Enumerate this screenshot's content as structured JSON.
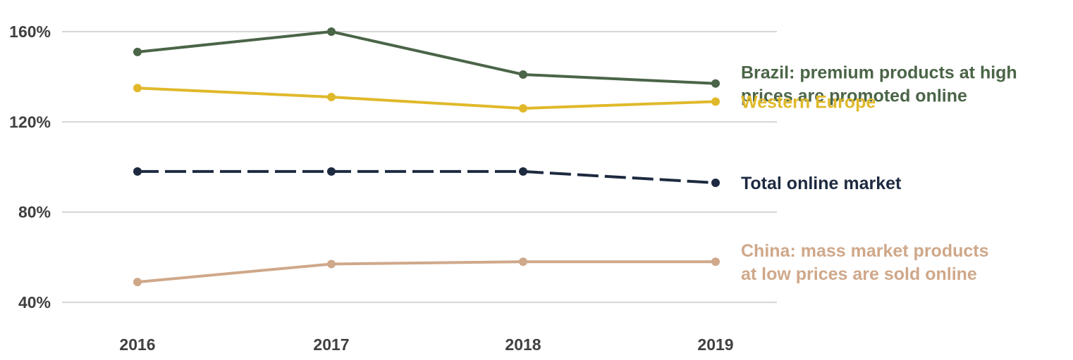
{
  "chart_data": {
    "type": "line",
    "title": "",
    "xlabel": "",
    "ylabel": "",
    "x": [
      "2016",
      "2017",
      "2018",
      "2019"
    ],
    "ylim": [
      40,
      160
    ],
    "yticks": [
      40,
      80,
      120,
      160
    ],
    "ytick_labels": [
      "40%",
      "80%",
      "120%",
      "160%"
    ],
    "grid": "horizontal",
    "legend": "inline-right",
    "series": [
      {
        "key": "brazil",
        "label_lines": [
          "Brazil: premium products at high",
          "prices are promoted online"
        ],
        "values": [
          151,
          160,
          141,
          137
        ],
        "color": "#4a6547",
        "dashed": false
      },
      {
        "key": "western_europe",
        "label_lines": [
          "Western Europe"
        ],
        "values": [
          135,
          131,
          126,
          129
        ],
        "color": "#e0b92b",
        "dashed": false
      },
      {
        "key": "total",
        "label_lines": [
          "Total online market"
        ],
        "values": [
          98,
          98,
          98,
          93
        ],
        "color": "#1d2a40",
        "dashed": true
      },
      {
        "key": "china",
        "label_lines": [
          "China: mass market products",
          "at low prices are sold online"
        ],
        "values": [
          49,
          57,
          58,
          58
        ],
        "color": "#cfa88a",
        "dashed": false
      }
    ]
  }
}
